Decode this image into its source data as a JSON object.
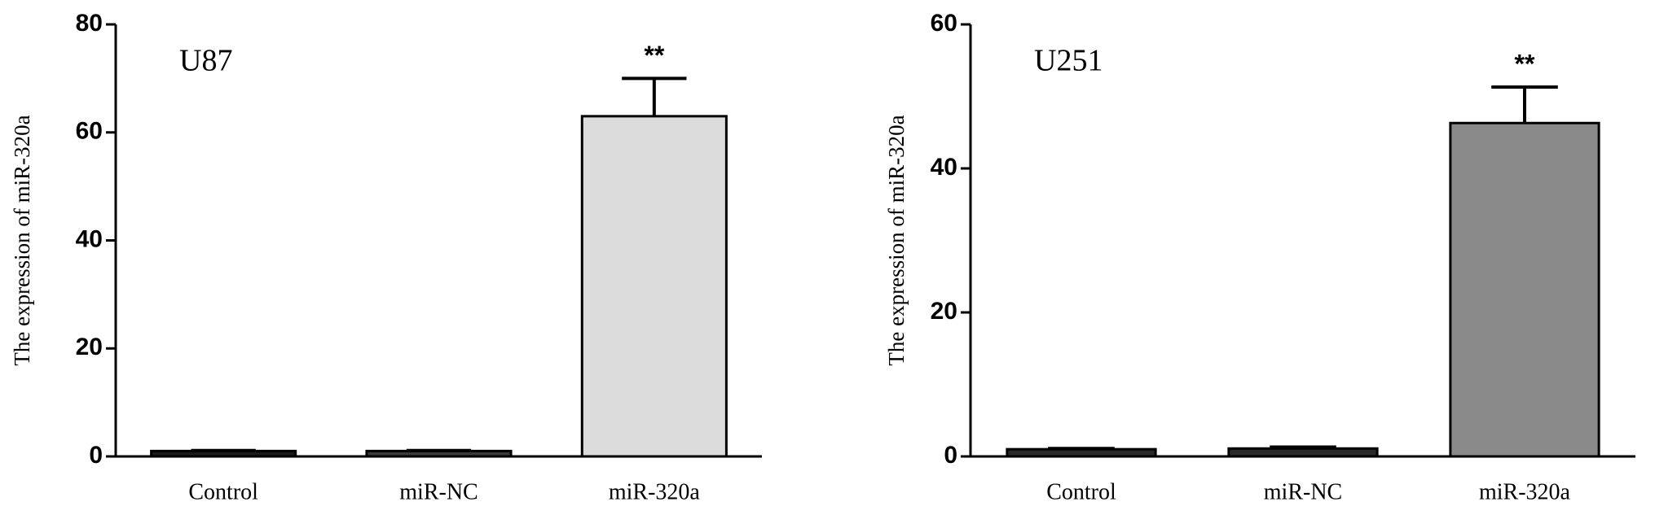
{
  "chart_data": [
    {
      "type": "bar",
      "inset_label": "U87",
      "y_label": "The expression of miR-320a",
      "categories": [
        "Control",
        "miR-NC",
        "miR-320a"
      ],
      "values": [
        1,
        1,
        63
      ],
      "errors": [
        0.1,
        0.1,
        7
      ],
      "colors": [
        "#1a1a1a",
        "#3a3a3a",
        "#dcdcdc"
      ],
      "significance": [
        null,
        null,
        "**"
      ],
      "ylim": [
        0,
        80
      ],
      "yticks": [
        0,
        20,
        40,
        60,
        80
      ]
    },
    {
      "type": "bar",
      "inset_label": "U251",
      "y_label": "The expression of miR-320a",
      "categories": [
        "Control",
        "miR-NC",
        "miR-320a"
      ],
      "values": [
        1,
        1.1,
        46.3
      ],
      "errors": [
        0.1,
        0.2,
        5
      ],
      "colors": [
        "#2a2a2a",
        "#2a2a2a",
        "#8a8a8a"
      ],
      "significance": [
        null,
        null,
        "**"
      ],
      "ylim": [
        0,
        60
      ],
      "yticks": [
        0,
        20,
        40,
        60
      ]
    }
  ]
}
